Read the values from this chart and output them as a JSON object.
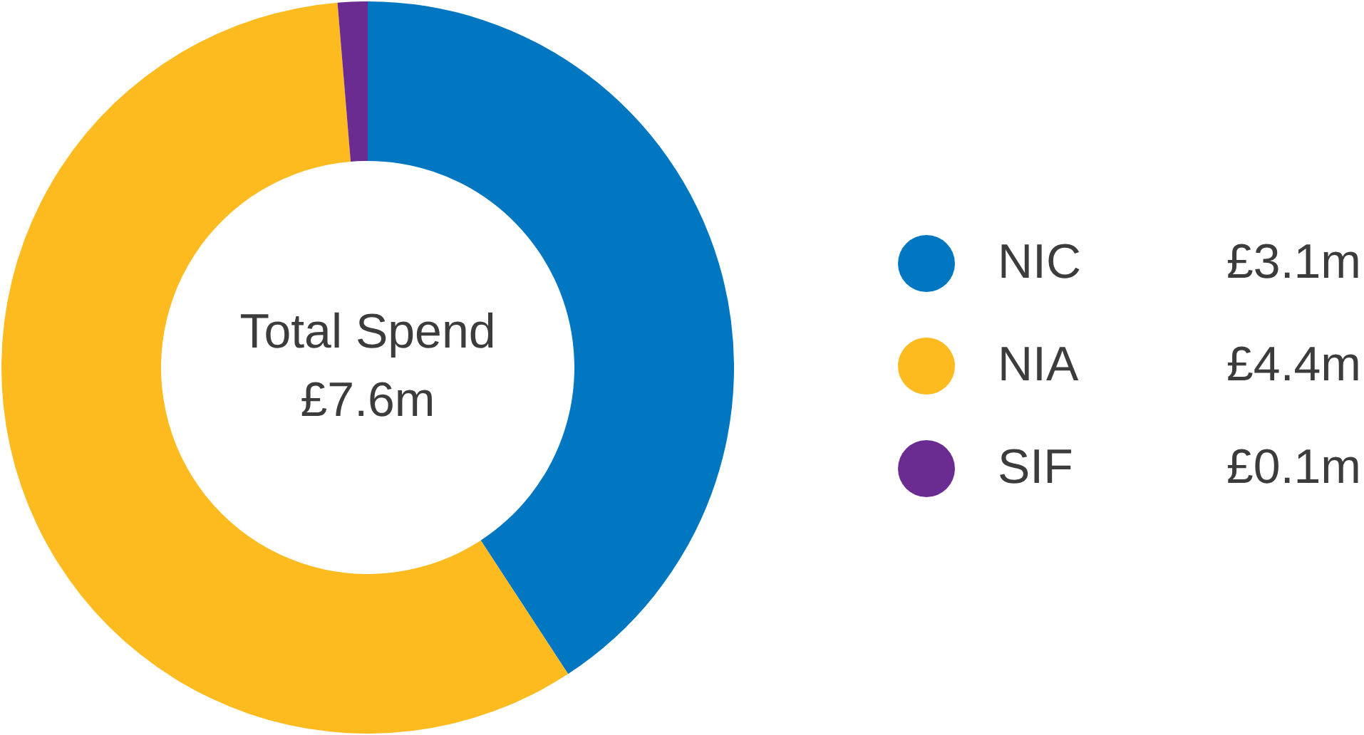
{
  "chart_data": {
    "type": "donut",
    "categories": [
      "NIC",
      "NIA",
      "SIF"
    ],
    "values": [
      3.1,
      4.4,
      0.1
    ],
    "colors": [
      "#0077c0",
      "#fdbb1f",
      "#6a2c91"
    ],
    "value_labels": [
      "£3.1m",
      "£4.4m",
      "£0.1m"
    ],
    "annotations": [
      "Total Spend",
      "£7.6m"
    ],
    "legend": "right"
  }
}
